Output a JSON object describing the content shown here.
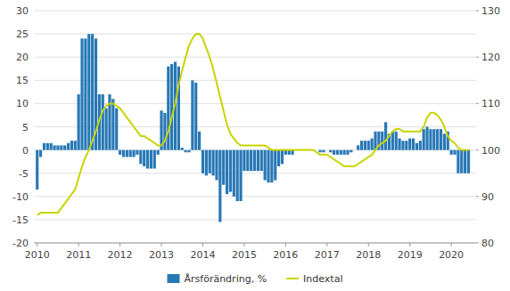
{
  "chart_data": {
    "type": "bar",
    "x": [
      2010,
      2010.0833333333333,
      2010.1666666666667,
      2010.25,
      2010.3333333333333,
      2010.4166666666667,
      2010.5,
      2010.5833333333333,
      2010.6666666666667,
      2010.75,
      2010.8333333333333,
      2010.9166666666667,
      2011,
      2011.0833333333333,
      2011.1666666666667,
      2011.25,
      2011.3333333333333,
      2011.4166666666667,
      2011.5,
      2011.5833333333333,
      2011.6666666666667,
      2011.75,
      2011.8333333333333,
      2011.9166666666667,
      2012,
      2012.0833333333333,
      2012.1666666666667,
      2012.25,
      2012.3333333333333,
      2012.4166666666667,
      2012.5,
      2012.5833333333333,
      2012.6666666666667,
      2012.75,
      2012.8333333333333,
      2012.9166666666667,
      2013,
      2013.0833333333333,
      2013.1666666666667,
      2013.25,
      2013.3333333333333,
      2013.4166666666667,
      2013.5,
      2013.5833333333333,
      2013.6666666666667,
      2013.75,
      2013.8333333333333,
      2013.9166666666667,
      2014,
      2014.0833333333333,
      2014.1666666666667,
      2014.25,
      2014.3333333333333,
      2014.4166666666667,
      2014.5,
      2014.5833333333333,
      2014.6666666666667,
      2014.75,
      2014.8333333333333,
      2014.9166666666667,
      2015,
      2015.0833333333333,
      2015.1666666666667,
      2015.25,
      2015.3333333333333,
      2015.4166666666667,
      2015.5,
      2015.5833333333333,
      2015.6666666666667,
      2015.75,
      2015.8333333333333,
      2015.9166666666667,
      2016,
      2016.0833333333333,
      2016.1666666666667,
      2016.25,
      2016.3333333333333,
      2016.4166666666667,
      2016.5,
      2016.5833333333333,
      2016.6666666666667,
      2016.75,
      2016.8333333333333,
      2016.9166666666667,
      2017,
      2017.0833333333333,
      2017.1666666666667,
      2017.25,
      2017.3333333333333,
      2017.4166666666667,
      2017.5,
      2017.5833333333333,
      2017.6666666666667,
      2017.75,
      2017.8333333333333,
      2017.9166666666667,
      2018,
      2018.0833333333333,
      2018.1666666666667,
      2018.25,
      2018.3333333333333,
      2018.4166666666667,
      2018.5,
      2018.5833333333333,
      2018.6666666666667,
      2018.75,
      2018.8333333333333,
      2018.9166666666667,
      2019,
      2019.0833333333333,
      2019.1666666666667,
      2019.25,
      2019.3333333333333,
      2019.4166666666667,
      2019.5,
      2019.5833333333333,
      2019.6666666666667,
      2019.75,
      2019.8333333333333,
      2019.9166666666667,
      2020,
      2020.0833333333333,
      2020.1666666666667,
      2020.25,
      2020.3333333333333,
      2020.4166666666667
    ],
    "xlim": [
      2009.92,
      2020.6
    ],
    "xticks": [
      2010,
      2011,
      2012,
      2013,
      2014,
      2015,
      2016,
      2017,
      2018,
      2019,
      2020
    ],
    "ylim": [
      -20,
      30
    ],
    "yticks": [
      -20,
      -15,
      -10,
      -5,
      0,
      5,
      10,
      15,
      20,
      25,
      30
    ],
    "y2lim": [
      80,
      130
    ],
    "y2ticks": [
      80,
      90,
      100,
      110,
      120,
      130
    ],
    "grid": true,
    "legend": "bottom",
    "series": [
      {
        "name": "Årsförändring, %",
        "type": "bar",
        "color": "#2878b5",
        "values": [
          -8.5,
          -1.5,
          1.5,
          1.5,
          1.5,
          1.0,
          1.0,
          1.0,
          1.0,
          1.5,
          2.0,
          2.0,
          12.0,
          24.0,
          24.0,
          25.0,
          25.0,
          24.0,
          12.0,
          12.0,
          9.0,
          12.0,
          11.0,
          9.0,
          -1.0,
          -1.5,
          -1.5,
          -1.5,
          -1.5,
          -1.0,
          -3.0,
          -3.5,
          -4.0,
          -4.0,
          -4.0,
          -1.0,
          8.5,
          8.0,
          18.0,
          18.5,
          19.0,
          18.0,
          0.5,
          -0.5,
          -0.5,
          15.0,
          14.5,
          4.0,
          -5.0,
          -5.5,
          -5.0,
          -5.5,
          -6.5,
          -15.5,
          -7.5,
          -9.5,
          -9.0,
          -10.0,
          -11.0,
          -11.0,
          -4.5,
          -4.5,
          -4.5,
          -4.5,
          -4.5,
          -4.5,
          -6.5,
          -7.0,
          -7.0,
          -6.5,
          -3.5,
          -3.0,
          -1.0,
          -1.0,
          -1.0,
          0.0,
          0.0,
          0.0,
          0.0,
          0.0,
          0.0,
          0.0,
          -0.5,
          -0.5,
          0.0,
          -0.5,
          -1.0,
          -1.0,
          -1.0,
          -1.0,
          -1.0,
          -0.5,
          0.0,
          1.0,
          2.0,
          2.0,
          2.0,
          2.5,
          4.0,
          4.0,
          4.0,
          6.0,
          3.5,
          4.0,
          4.0,
          2.5,
          2.0,
          2.0,
          2.5,
          2.5,
          1.5,
          2.0,
          4.5,
          5.0,
          4.5,
          4.5,
          4.5,
          4.5,
          3.5,
          4.0,
          -1.0,
          -1.0,
          -5.0,
          -5.0,
          -5.0,
          -5.0
        ]
      },
      {
        "name": "Indextal",
        "type": "line",
        "color": "#c8d400",
        "axis": "y2",
        "values": [
          86.0,
          86.5,
          86.5,
          86.5,
          86.5,
          86.5,
          86.5,
          87.5,
          88.5,
          89.5,
          90.5,
          91.5,
          94.0,
          96.5,
          98.5,
          100.0,
          102.0,
          104.0,
          106.5,
          108.5,
          109.5,
          110.0,
          110.0,
          109.5,
          109.0,
          108.0,
          107.0,
          106.0,
          105.0,
          104.0,
          103.0,
          103.0,
          102.5,
          102.0,
          101.5,
          101.0,
          101.0,
          102.0,
          104.0,
          107.0,
          110.0,
          114.0,
          117.0,
          120.0,
          122.5,
          124.0,
          125.0,
          125.0,
          124.0,
          122.0,
          120.0,
          117.5,
          114.5,
          111.5,
          108.5,
          105.5,
          103.5,
          102.5,
          101.5,
          101.0,
          101.0,
          101.0,
          101.0,
          101.0,
          101.0,
          101.0,
          101.0,
          100.5,
          100.0,
          100.0,
          100.0,
          100.0,
          100.0,
          100.0,
          100.0,
          100.0,
          100.0,
          100.0,
          100.0,
          100.0,
          100.0,
          99.5,
          99.0,
          99.0,
          99.0,
          98.5,
          98.0,
          97.5,
          97.0,
          96.5,
          96.5,
          96.5,
          96.5,
          97.0,
          97.5,
          98.0,
          98.5,
          99.0,
          100.0,
          101.0,
          101.5,
          102.0,
          103.0,
          104.0,
          104.5,
          104.5,
          104.0,
          104.0,
          104.0,
          104.0,
          104.0,
          104.0,
          105.0,
          107.0,
          108.0,
          108.0,
          107.5,
          106.5,
          105.0,
          103.0,
          102.0,
          101.5,
          100.5,
          100.0,
          100.0,
          100.0
        ]
      }
    ]
  }
}
